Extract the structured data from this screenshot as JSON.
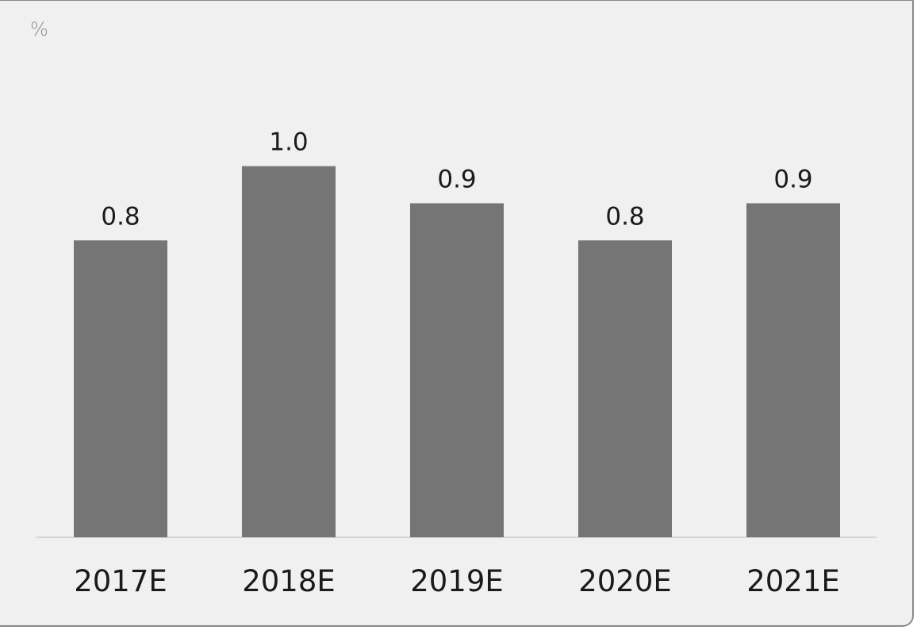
{
  "chart_data": {
    "type": "bar",
    "unit_label": "%",
    "categories": [
      "2017E",
      "2018E",
      "2019E",
      "2020E",
      "2021E"
    ],
    "values": [
      0.8,
      1.0,
      0.9,
      0.8,
      0.9
    ],
    "data_labels": [
      "0.8",
      "1.0",
      "0.9",
      "0.8",
      "0.9"
    ],
    "ylim": [
      0,
      1.2
    ],
    "grid": false,
    "legend": "none",
    "bar_color": "#757575"
  }
}
